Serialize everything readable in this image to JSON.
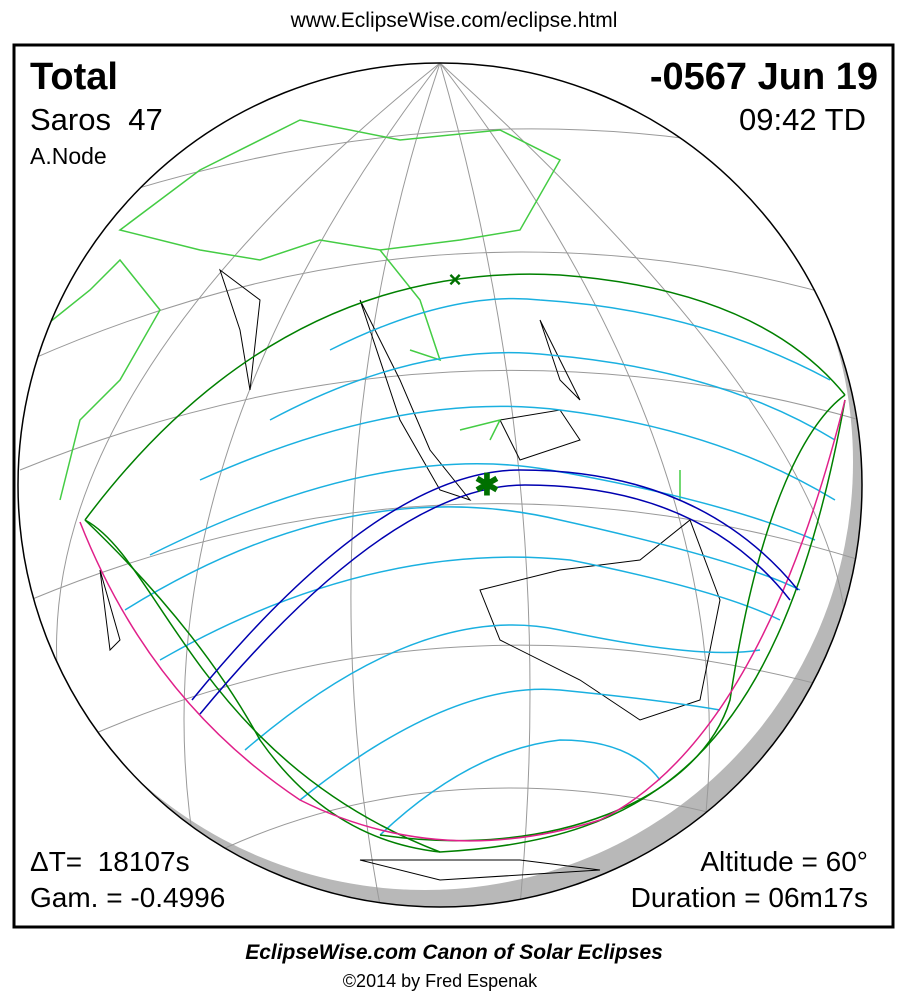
{
  "header": {
    "url": "www.EclipseWise.com/eclipse.html"
  },
  "eclipse": {
    "type": "Total",
    "date": "-0567 Jun 19",
    "saros": "Saros  47",
    "time": "09:42 TD",
    "node": "A.Node",
    "delta_t": "ΔT=  18107s",
    "gamma": "Gam. = -0.4996",
    "altitude": "Altitude = 60°",
    "duration": "Duration = 06m17s"
  },
  "footer": {
    "title": "EclipseWise.com Canon of Solar Eclipses",
    "credit": "©2014 by Fred Espenak"
  }
}
